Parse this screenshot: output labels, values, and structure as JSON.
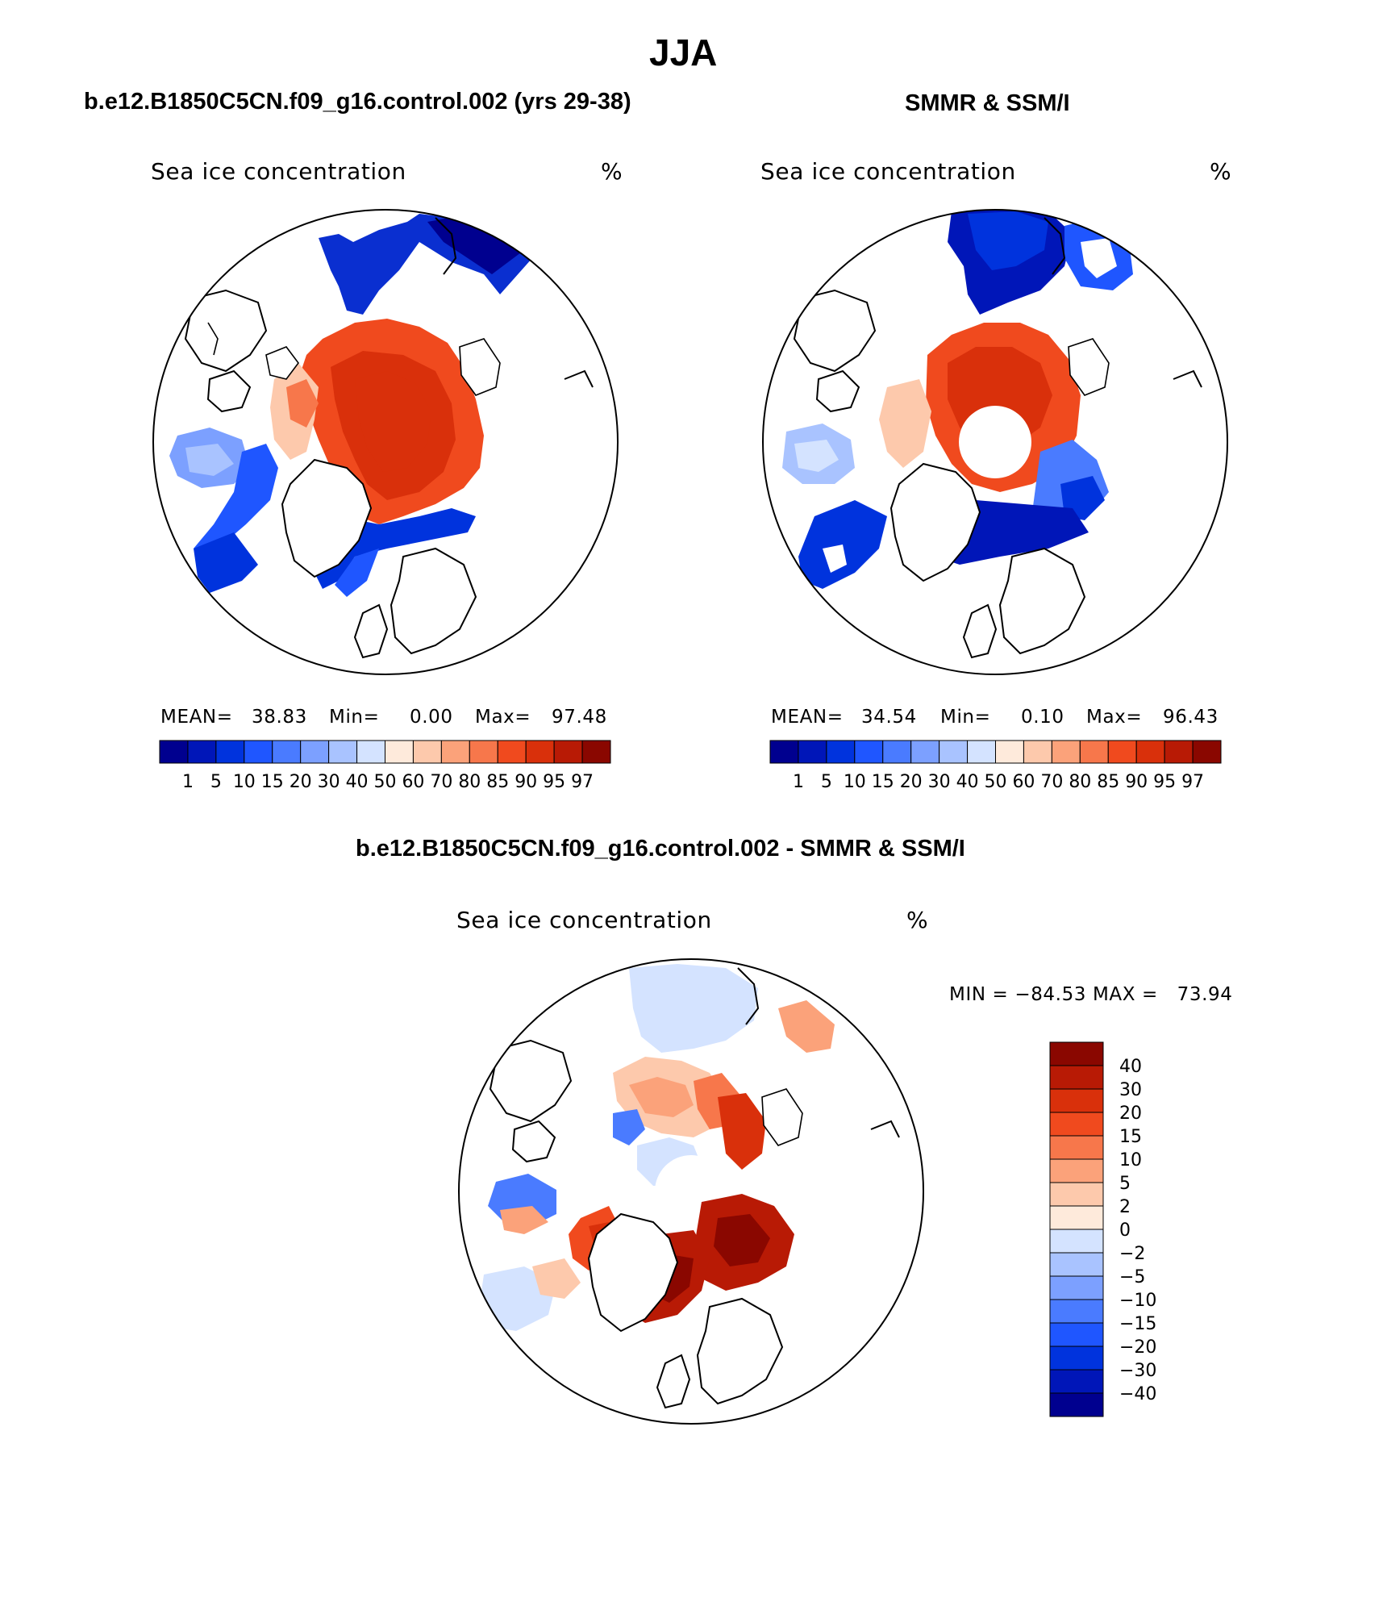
{
  "page_title": "JJA",
  "panels": [
    {
      "title": "b.e12.B1850C5CN.f09_g16.control.002 (yrs 29-38)",
      "variable": "Sea ice concentration",
      "units": "%",
      "stats": {
        "mean_label": "MEAN=",
        "mean": "38.83",
        "min_label": "Min=",
        "min": "0.00",
        "max_label": "Max=",
        "max": "97.48"
      },
      "colorbar_labels": [
        "1",
        "5",
        "10",
        "15",
        "20",
        "30",
        "40",
        "50",
        "60",
        "70",
        "80",
        "85",
        "90",
        "95",
        "97"
      ]
    },
    {
      "title": "SMMR & SSM/I",
      "variable": "Sea ice concentration",
      "units": "%",
      "stats": {
        "mean_label": "MEAN=",
        "mean": "34.54",
        "min_label": "Min=",
        "min": "0.10",
        "max_label": "Max=",
        "max": "96.43"
      },
      "colorbar_labels": [
        "1",
        "5",
        "10",
        "15",
        "20",
        "30",
        "40",
        "50",
        "60",
        "70",
        "80",
        "85",
        "90",
        "95",
        "97"
      ]
    },
    {
      "title": "b.e12.B1850C5CN.f09_g16.control.002 - SMMR & SSM/I",
      "variable": "Sea ice concentration",
      "units": "%",
      "stats_line": "MIN = −84.53 MAX =   73.94",
      "colorbar_labels": [
        "40",
        "30",
        "20",
        "15",
        "10",
        "5",
        "2",
        "0",
        "−2",
        "−5",
        "−10",
        "−15",
        "−20",
        "−30",
        "−40"
      ]
    }
  ],
  "colors": {
    "concentration_scale": [
      "#00008f",
      "#0016b8",
      "#0033dd",
      "#1f56ff",
      "#4a7bff",
      "#7ca0ff",
      "#a9c3ff",
      "#d4e3ff",
      "#feeadb",
      "#fdc9ac",
      "#fba27a",
      "#f7774b",
      "#f04a1e",
      "#d9300b",
      "#b81a05",
      "#8a0700"
    ],
    "difference_scale": [
      "#8a0700",
      "#b81a05",
      "#d9300b",
      "#f04a1e",
      "#f7774b",
      "#fba27a",
      "#fdc9ac",
      "#feeadb",
      "#d4e3ff",
      "#a9c3ff",
      "#7ca0ff",
      "#4a7bff",
      "#1f56ff",
      "#0033dd",
      "#0016b8",
      "#00008f"
    ],
    "land": "#ffffff",
    "coastline": "#000000"
  }
}
